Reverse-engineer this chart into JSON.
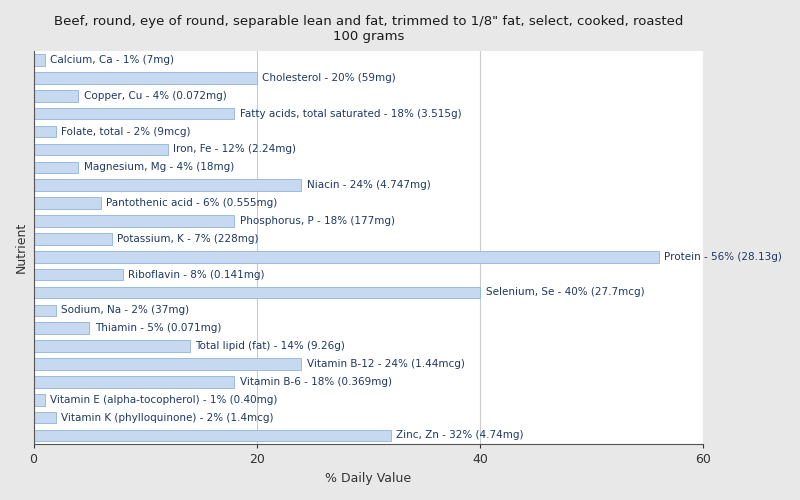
{
  "title": "Beef, round, eye of round, separable lean and fat, trimmed to 1/8\" fat, select, cooked, roasted\n100 grams",
  "xlabel": "% Daily Value",
  "ylabel": "Nutrient",
  "figure_bg": "#e8e8e8",
  "axes_bg": "#ffffff",
  "bar_color": "#c6d9f0",
  "bar_edge_color": "#8fb4d9",
  "text_color": "#1f3864",
  "xlim": [
    0,
    60
  ],
  "xticks": [
    0,
    20,
    40,
    60
  ],
  "nutrients": [
    "Calcium, Ca - 1% (7mg)",
    "Cholesterol - 20% (59mg)",
    "Copper, Cu - 4% (0.072mg)",
    "Fatty acids, total saturated - 18% (3.515g)",
    "Folate, total - 2% (9mcg)",
    "Iron, Fe - 12% (2.24mg)",
    "Magnesium, Mg - 4% (18mg)",
    "Niacin - 24% (4.747mg)",
    "Pantothenic acid - 6% (0.555mg)",
    "Phosphorus, P - 18% (177mg)",
    "Potassium, K - 7% (228mg)",
    "Protein - 56% (28.13g)",
    "Riboflavin - 8% (0.141mg)",
    "Selenium, Se - 40% (27.7mcg)",
    "Sodium, Na - 2% (37mg)",
    "Thiamin - 5% (0.071mg)",
    "Total lipid (fat) - 14% (9.26g)",
    "Vitamin B-12 - 24% (1.44mcg)",
    "Vitamin B-6 - 18% (0.369mg)",
    "Vitamin E (alpha-tocopherol) - 1% (0.40mg)",
    "Vitamin K (phylloquinone) - 2% (1.4mcg)",
    "Zinc, Zn - 32% (4.74mg)"
  ],
  "values": [
    1,
    20,
    4,
    18,
    2,
    12,
    4,
    24,
    6,
    18,
    7,
    56,
    8,
    40,
    2,
    5,
    14,
    24,
    18,
    1,
    2,
    32
  ],
  "title_fontsize": 9.5,
  "label_fontsize": 7.5,
  "axis_label_fontsize": 9,
  "tick_fontsize": 9
}
